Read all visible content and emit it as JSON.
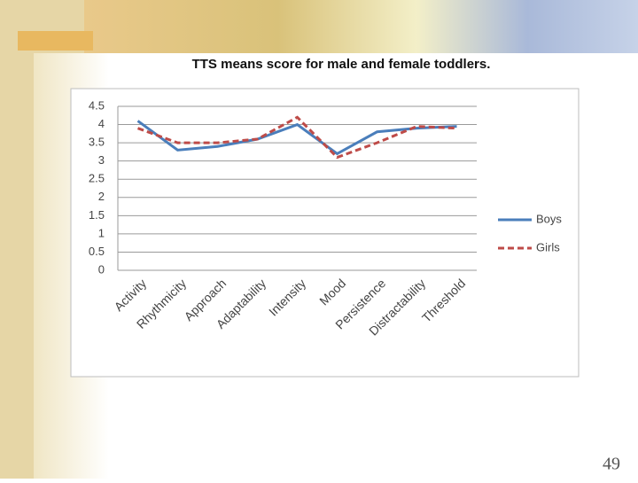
{
  "chart_data": {
    "type": "line",
    "title": "TTS means score for male and female toddlers.",
    "categories": [
      "Activity",
      "Rhythmicity",
      "Approach",
      "Adaptability",
      "Intensity",
      "Mood",
      "Persistence",
      "Distractability",
      "Threshold"
    ],
    "series": [
      {
        "name": "Boys",
        "color": "#4a7ebb",
        "dash": false,
        "values": [
          4.1,
          3.3,
          3.4,
          3.6,
          4.0,
          3.2,
          3.8,
          3.9,
          3.95
        ]
      },
      {
        "name": "Girls",
        "color": "#be4b48",
        "dash": true,
        "values": [
          3.9,
          3.5,
          3.5,
          3.6,
          4.2,
          3.1,
          3.5,
          3.95,
          3.9
        ]
      }
    ],
    "ylim": [
      0,
      4.5
    ],
    "yticks": [
      0,
      0.5,
      1,
      1.5,
      2,
      2.5,
      3,
      3.5,
      4,
      4.5
    ],
    "grid": true,
    "legend": "right"
  },
  "page_number": "49"
}
